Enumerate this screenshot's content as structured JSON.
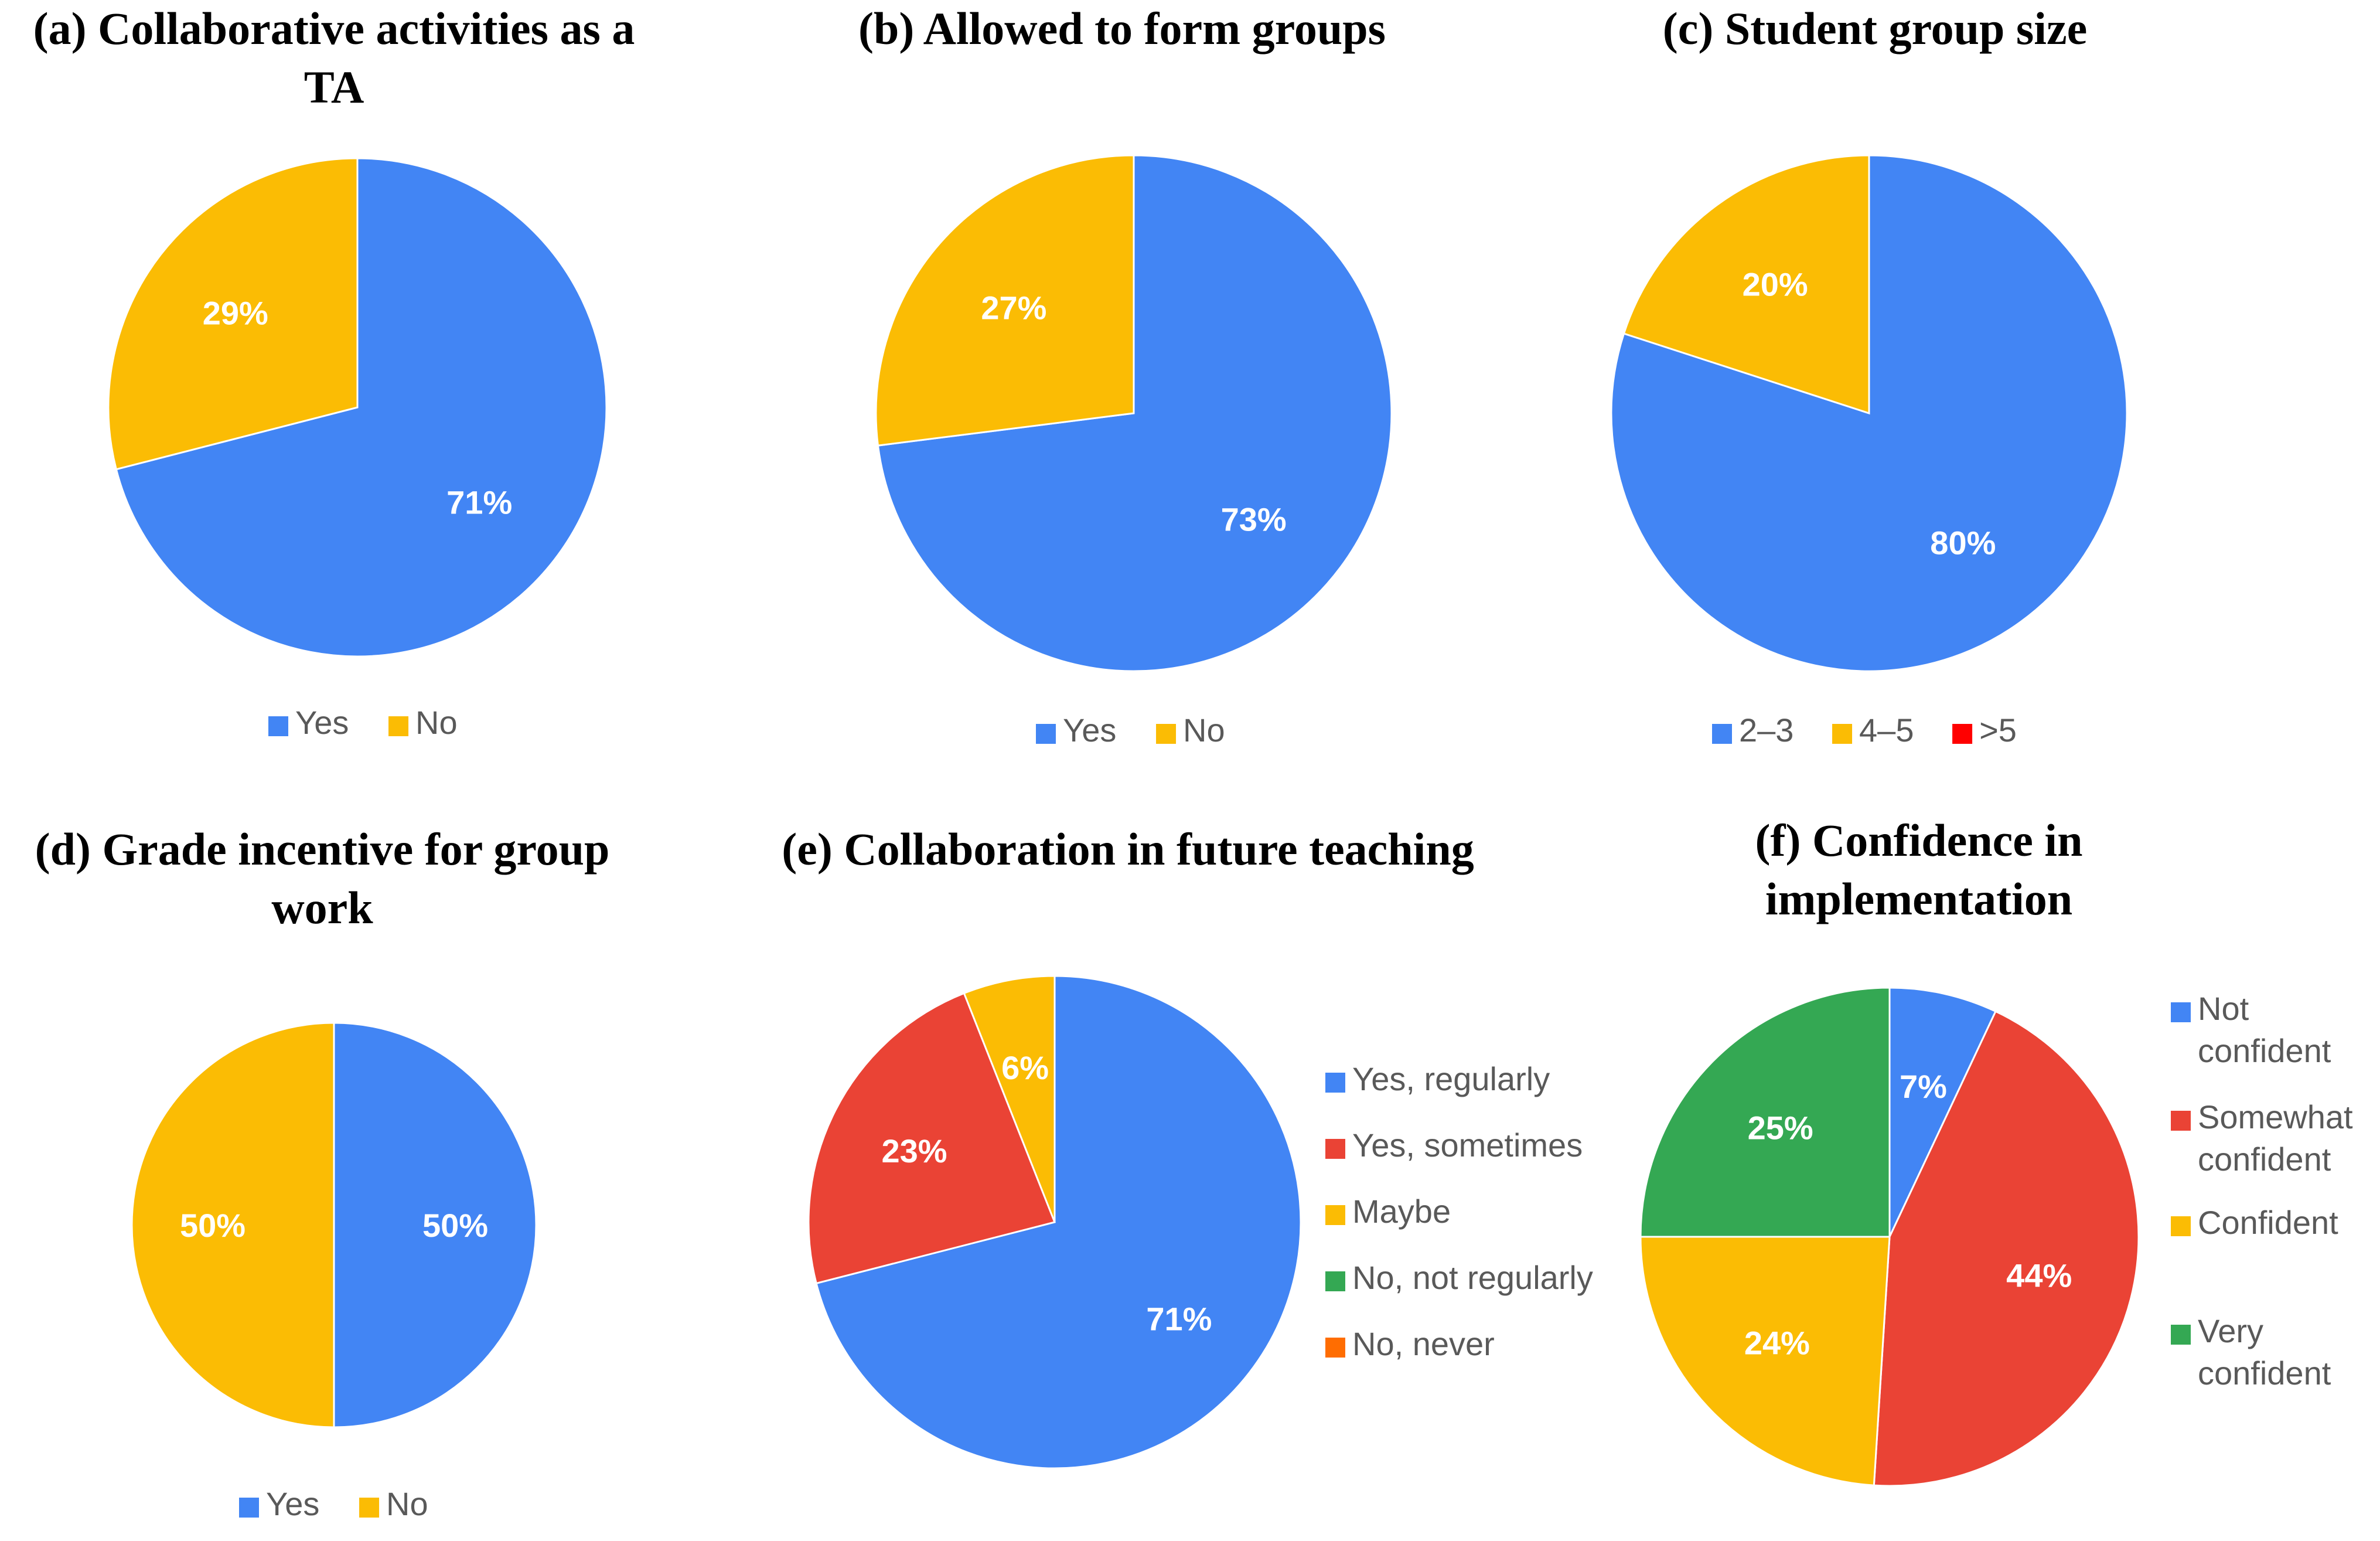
{
  "colors": {
    "blue": "#4285f4",
    "yellow": "#fbbc04",
    "red": "#ea4335",
    "green": "#34a853",
    "orange": "#ff6d01",
    "bright_red": "#ff0000"
  },
  "chart_data": [
    {
      "type": "pie",
      "title": [
        "(a) Collaborative activities as a",
        "TA"
      ],
      "legend_position": "bottom",
      "slices": [
        {
          "label": "Yes",
          "value": 71,
          "display": "71%",
          "color": "#4285f4"
        },
        {
          "label": "No",
          "value": 29,
          "display": "29%",
          "color": "#fbbc04"
        }
      ]
    },
    {
      "type": "pie",
      "title": [
        "(b) Allowed to form groups"
      ],
      "legend_position": "bottom",
      "slices": [
        {
          "label": "Yes",
          "value": 73,
          "display": "73%",
          "color": "#4285f4"
        },
        {
          "label": "No",
          "value": 27,
          "display": "27%",
          "color": "#fbbc04"
        }
      ]
    },
    {
      "type": "pie",
      "title": [
        "(c) Student group size"
      ],
      "legend_position": "bottom",
      "slices": [
        {
          "label": "2–3",
          "value": 80,
          "display": "80%",
          "color": "#4285f4"
        },
        {
          "label": "4–5",
          "value": 20,
          "display": "20%",
          "color": "#fbbc04"
        },
        {
          "label": ">5",
          "value": 0,
          "display": "",
          "color": "#ff0000"
        }
      ]
    },
    {
      "type": "pie",
      "title": [
        "(d) Grade incentive for group",
        "work"
      ],
      "legend_position": "bottom",
      "slices": [
        {
          "label": "Yes",
          "value": 50,
          "display": "50%",
          "color": "#4285f4"
        },
        {
          "label": "No",
          "value": 50,
          "display": "50%",
          "color": "#fbbc04"
        }
      ]
    },
    {
      "type": "pie",
      "title": [
        "(e) Collaboration in future teaching"
      ],
      "legend_position": "right",
      "slices": [
        {
          "label": "Yes, regularly",
          "value": 71,
          "display": "71%",
          "color": "#4285f4"
        },
        {
          "label": "Yes, sometimes",
          "value": 23,
          "display": "23%",
          "color": "#ea4335"
        },
        {
          "label": "Maybe",
          "value": 6,
          "display": "6%",
          "color": "#fbbc04"
        },
        {
          "label": "No, not regularly",
          "value": 0,
          "display": "",
          "color": "#34a853"
        },
        {
          "label": "No, never",
          "value": 0,
          "display": "",
          "color": "#ff6d01"
        }
      ]
    },
    {
      "type": "pie",
      "title": [
        "(f) Confidence in",
        "implementation"
      ],
      "legend_position": "right",
      "slices": [
        {
          "label": [
            "Not",
            "confident"
          ],
          "value": 7,
          "display": "7%",
          "color": "#4285f4"
        },
        {
          "label": [
            "Somewhat",
            "confident"
          ],
          "value": 44,
          "display": "44%",
          "color": "#ea4335"
        },
        {
          "label": [
            "Confident"
          ],
          "value": 24,
          "display": "24%",
          "color": "#fbbc04"
        },
        {
          "label": [
            "Very",
            "confident"
          ],
          "value": 25,
          "display": "25%",
          "color": "#34a853"
        }
      ]
    }
  ]
}
